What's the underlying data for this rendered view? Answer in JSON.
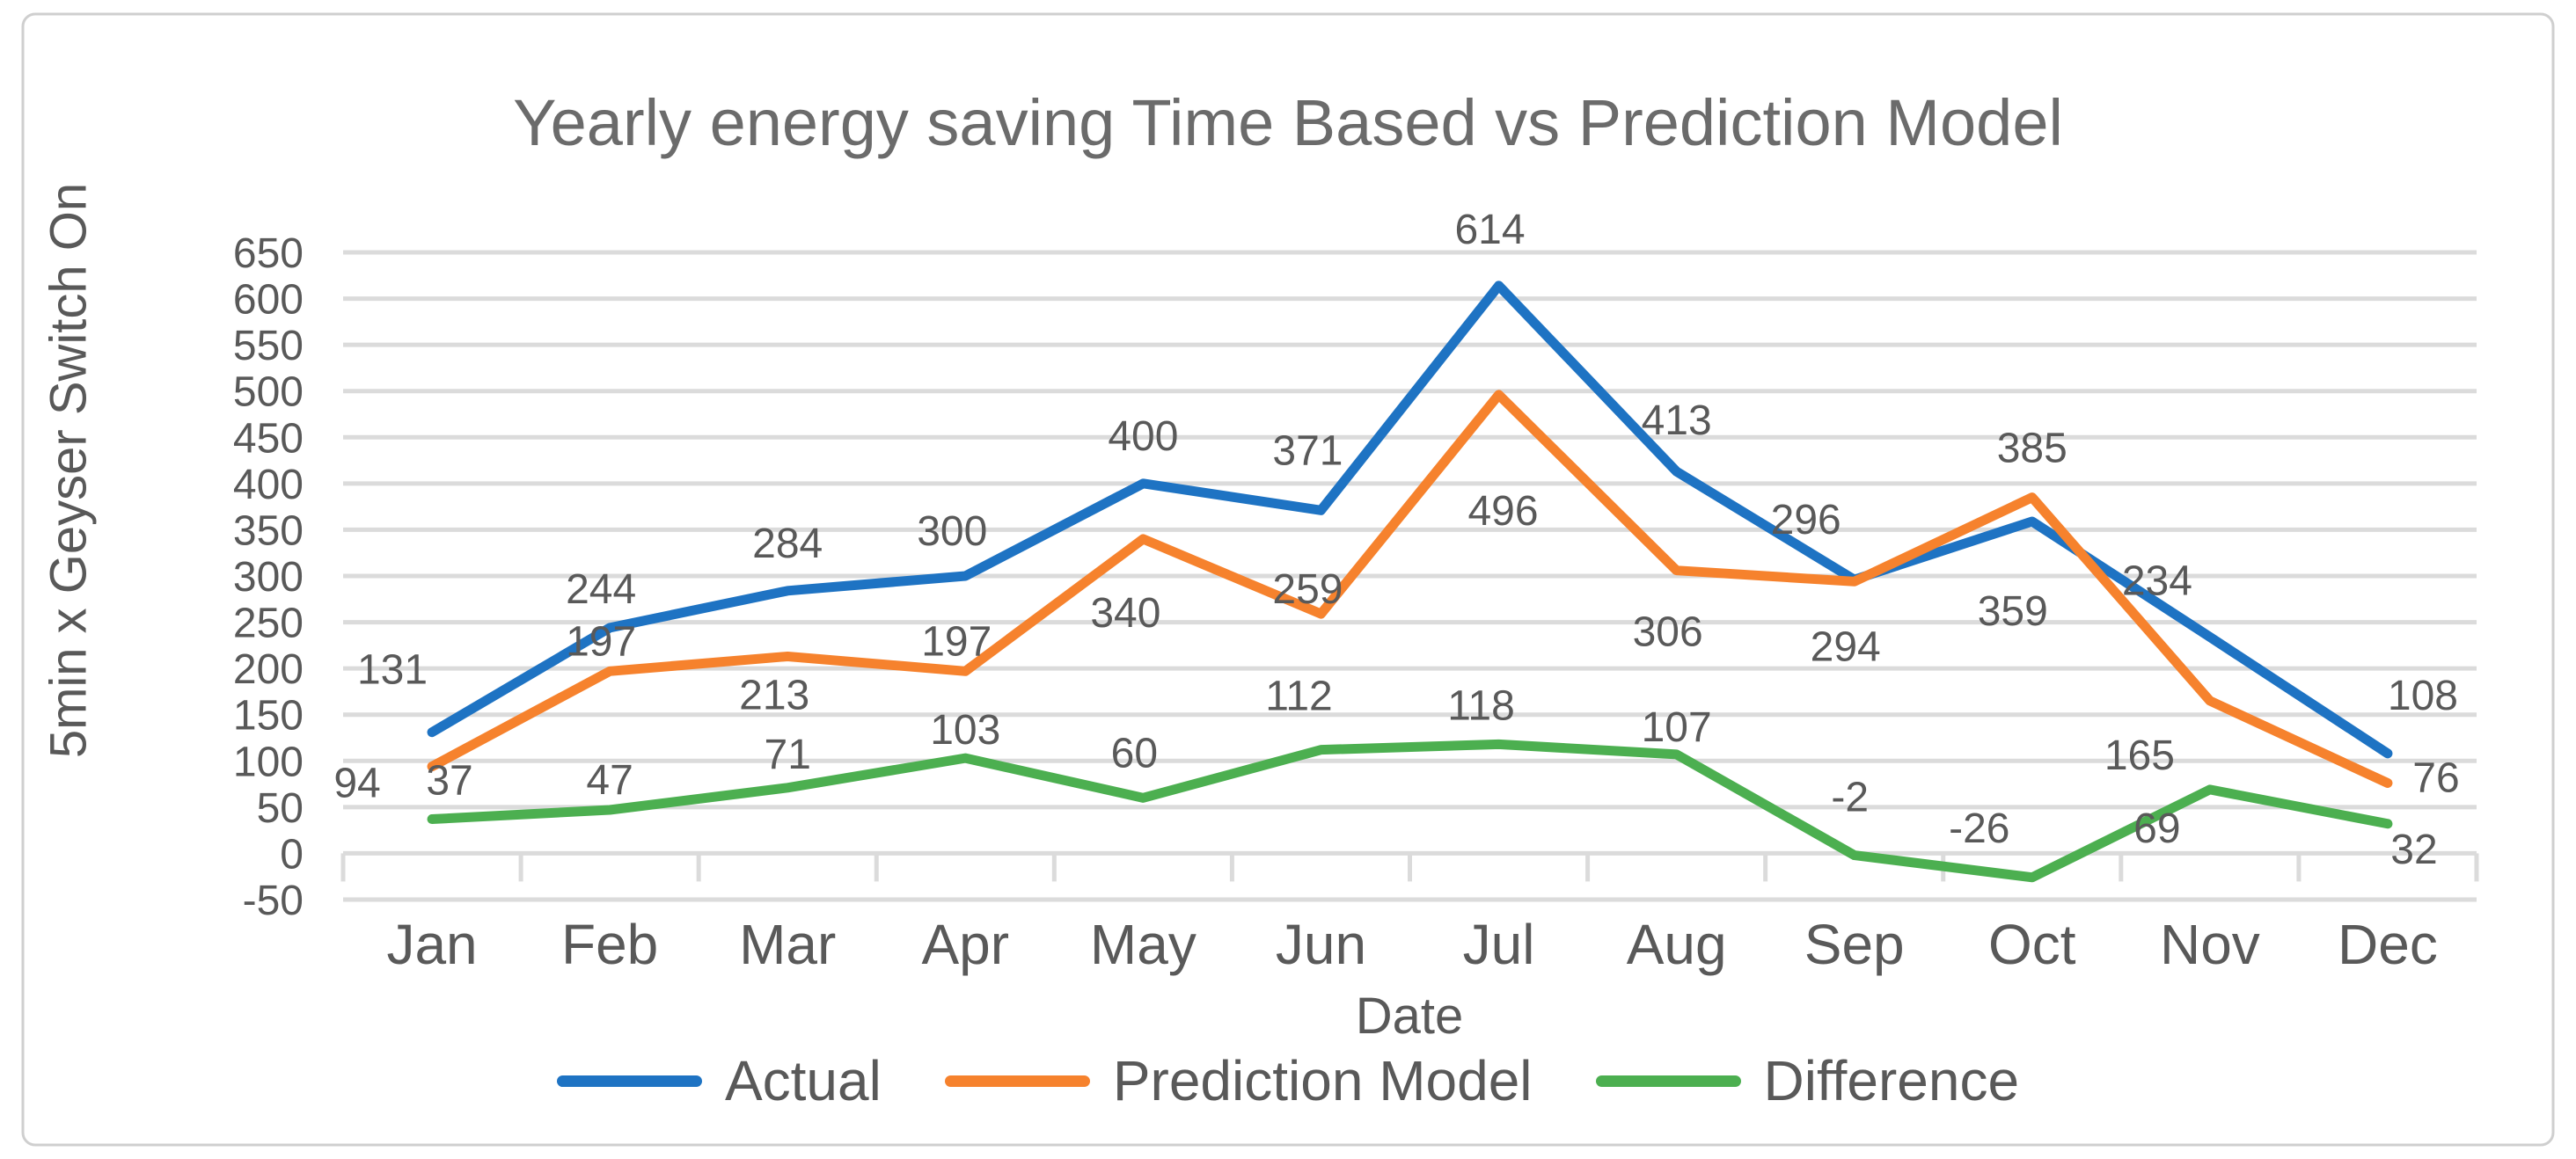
{
  "window": {
    "background": "#ffffff",
    "border_color": "#cfcfcf"
  },
  "chart_data": {
    "type": "line",
    "title": "Yearly energy saving Time Based vs Prediction Model",
    "xlabel": "Date",
    "ylabel": "5min x Geyser Switch On",
    "categories": [
      "Jan",
      "Feb",
      "Mar",
      "Apr",
      "May",
      "Jun",
      "Jul",
      "Aug",
      "Sep",
      "Oct",
      "Nov",
      "Dec"
    ],
    "series": [
      {
        "name": "Actual",
        "color": "#1E73C3",
        "values": [
          131,
          244,
          284,
          300,
          400,
          371,
          614,
          413,
          296,
          359,
          234,
          108
        ],
        "data_labels": [
          "131",
          "244",
          "284",
          "300",
          "400",
          "371",
          "614",
          "413",
          "296",
          "359",
          "234",
          "108"
        ],
        "label_offsets": [
          [
            -45,
            -55
          ],
          [
            -10,
            -28
          ],
          [
            0,
            -38
          ],
          [
            -15,
            -35
          ],
          [
            0,
            -38
          ],
          [
            -15,
            -52
          ],
          [
            -10,
            -48
          ],
          [
            0,
            -42
          ],
          [
            -55,
            -52
          ],
          [
            -22,
            118
          ],
          [
            -60,
            -48
          ],
          [
            40,
            -50
          ]
        ]
      },
      {
        "name": "Prediction Model",
        "color": "#F6822D",
        "values": [
          94,
          197,
          213,
          197,
          340,
          259,
          496,
          306,
          294,
          385,
          165,
          76
        ],
        "data_labels": [
          "94",
          "197",
          "213",
          "197",
          "340",
          "259",
          "496",
          "306",
          "294",
          "385",
          "165",
          "76"
        ],
        "label_offsets": [
          [
            -85,
            35
          ],
          [
            -10,
            -18
          ],
          [
            -15,
            60
          ],
          [
            -10,
            -18
          ],
          [
            -20,
            100
          ],
          [
            -15,
            -12
          ],
          [
            5,
            148
          ],
          [
            -10,
            86
          ],
          [
            -10,
            90
          ],
          [
            0,
            -40
          ],
          [
            -80,
            78
          ],
          [
            55,
            10
          ]
        ]
      },
      {
        "name": "Difference",
        "color": "#4CAF50",
        "values": [
          37,
          47,
          71,
          103,
          60,
          112,
          118,
          107,
          -2,
          -26,
          69,
          32
        ],
        "data_labels": [
          "37",
          "47",
          "71",
          "103",
          "60",
          "112",
          "118",
          "107",
          "-2",
          "-26",
          "69",
          "32"
        ],
        "label_offsets": [
          [
            20,
            -28
          ],
          [
            0,
            -18
          ],
          [
            0,
            -22
          ],
          [
            0,
            -16
          ],
          [
            -10,
            -35
          ],
          [
            -25,
            -45
          ],
          [
            -20,
            -28
          ],
          [
            0,
            -15
          ],
          [
            -5,
            -50
          ],
          [
            -60,
            -40
          ],
          [
            -60,
            60
          ],
          [
            30,
            45
          ]
        ]
      }
    ],
    "y_axis": {
      "min": -50,
      "max": 650,
      "step": 50,
      "tick_labels": [
        "650",
        "600",
        "550",
        "500",
        "450",
        "400",
        "350",
        "300",
        "250",
        "200",
        "150",
        "100",
        "50",
        "0",
        "-50"
      ]
    },
    "grid": true,
    "legend_position": "bottom",
    "legend_entries": [
      "Actual",
      "Prediction Model",
      "Difference"
    ],
    "colors": {
      "gridline": "#DBDBDB",
      "axis_text": "#595959",
      "data_label_text": "#595959",
      "title_text": "#6b6b6b"
    }
  }
}
